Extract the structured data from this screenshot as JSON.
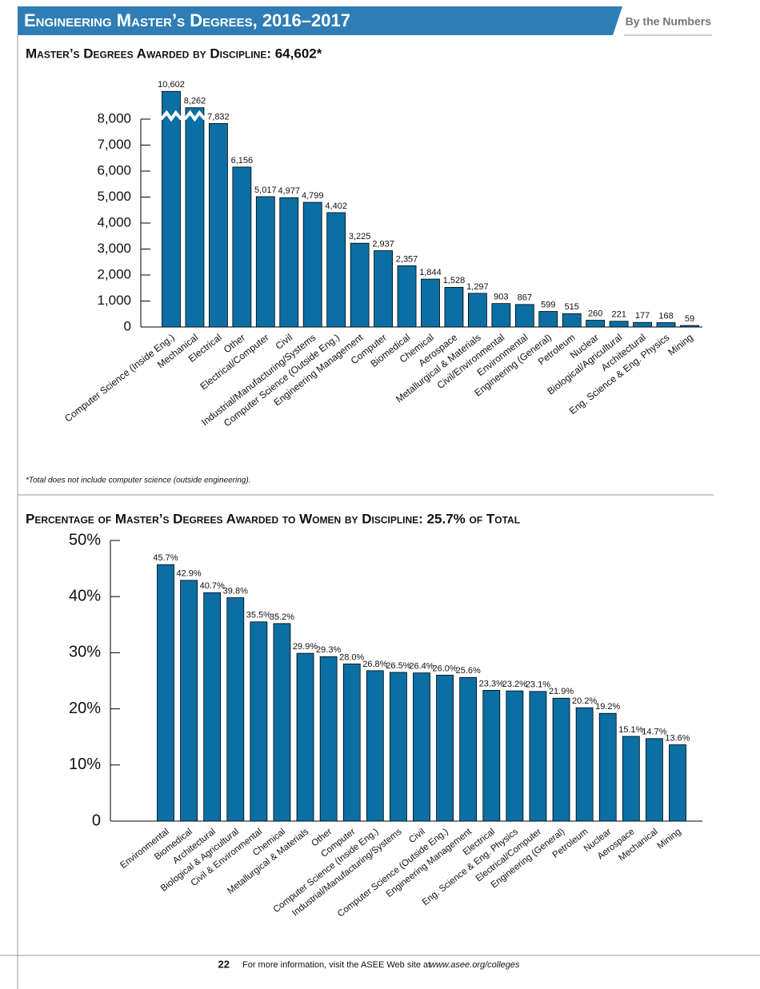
{
  "header": {
    "title": "Engineering Master’s Degrees, 2016–2017",
    "section": "By the Numbers"
  },
  "chart_data": [
    {
      "type": "bar",
      "title": "Master’s Degrees Awarded by Discipline: 64,602*",
      "note": "*Total does not include computer science (outside engineering).",
      "categories": [
        "Computer Science (Inside Eng.)",
        "Mechanical",
        "Electrical",
        "Other",
        "Electrical/Computer",
        "Civil",
        "Industrial/Manufacturing/Systems",
        "Computer Science (Outside Eng.)",
        "Engineering Management",
        "Computer",
        "Biomedical",
        "Chemical",
        "Aerospace",
        "Metallurgical & Materials",
        "Civil/Environmental",
        "Environmental",
        "Engineering (General)",
        "Petroleum",
        "Nuclear",
        "Biological/Agricultural",
        "Architectural",
        "Eng. Science & Eng. Physics",
        "Mining"
      ],
      "values": [
        10602,
        8262,
        7832,
        6156,
        5017,
        4977,
        4799,
        4402,
        3225,
        2937,
        2357,
        1844,
        1528,
        1297,
        903,
        867,
        599,
        515,
        260,
        221,
        177,
        168,
        59
      ],
      "value_labels": [
        "10,602",
        "8,262",
        "7,832",
        "6,156",
        "5,017",
        "4,977",
        "4,799",
        "4,402",
        "3,225",
        "2,937",
        "2,357",
        "1,844",
        "1,528",
        "1,297",
        "903",
        "867",
        "599",
        "515",
        "260",
        "221",
        "177",
        "168",
        "59"
      ],
      "color": "#0b6fa4",
      "axis_break": true,
      "ylim": [
        0,
        8000
      ],
      "yticks": [
        0,
        {
          "value": 1000,
          "label": "1,000"
        },
        {
          "value": 2000,
          "label": "2,000"
        },
        {
          "value": 3000,
          "label": "3,000"
        },
        {
          "value": 4000,
          "label": "4,000"
        },
        {
          "value": 5000,
          "label": "5,000"
        },
        {
          "value": 6000,
          "label": "6,000"
        },
        {
          "value": 7000,
          "label": "7,000"
        },
        {
          "value": 8000,
          "label": "8,000"
        }
      ]
    },
    {
      "type": "bar",
      "title": "Percentage of Master’s Degrees Awarded to Women by Discipline: 25.7%  of Total",
      "categories": [
        "Environmental",
        "Biomedical",
        "Architectural",
        "Biological & Agricultural",
        "Civil & Environmental",
        "Chemical",
        "Metallurgical & Materials",
        "Other",
        "Computer",
        "Computer Science (Inside Eng.)",
        "Industrial/Manufacturing/Systems",
        "Civil",
        "Computer Science (Outside Eng.)",
        "Engineering Management",
        "Electrical",
        "Eng. Science & Eng. Physics",
        "Electrical/Computer",
        "Engineering (General)",
        "Petroleum",
        "Nuclear",
        "Aerospace",
        "Mechanical",
        "Mining"
      ],
      "values": [
        45.7,
        42.9,
        40.7,
        39.8,
        35.5,
        35.2,
        29.9,
        29.3,
        28.0,
        26.8,
        26.5,
        26.4,
        26.0,
        25.6,
        23.3,
        23.2,
        23.1,
        21.9,
        20.2,
        19.2,
        15.1,
        14.7,
        13.6
      ],
      "value_labels": [
        "45.7%",
        "42.9%",
        "40.7%",
        "39.8%",
        "35.5%",
        "35.2%",
        "29.9%",
        "29.3%",
        "28.0%",
        "26.8%",
        "26.5%",
        "26.4%",
        "26.0%",
        "25.6%",
        "23.3%",
        "23.2%",
        "23.1%",
        "21.9%",
        "20.2%",
        "19.2%",
        "15.1%",
        "14.7%",
        "13.6%"
      ],
      "color": "#0b6fa4",
      "ylim": [
        0,
        50
      ],
      "yticks": [
        0,
        {
          "value": 10,
          "label": "10%"
        },
        {
          "value": 20,
          "label": "20%"
        },
        {
          "value": 30,
          "label": "30%"
        },
        {
          "value": 40,
          "label": "40%"
        },
        {
          "value": 50,
          "label": "50%"
        }
      ]
    }
  ],
  "footer": {
    "page": "22",
    "text": "For more information, visit the ASEE Web site at",
    "url": "www.asee.org/colleges"
  }
}
